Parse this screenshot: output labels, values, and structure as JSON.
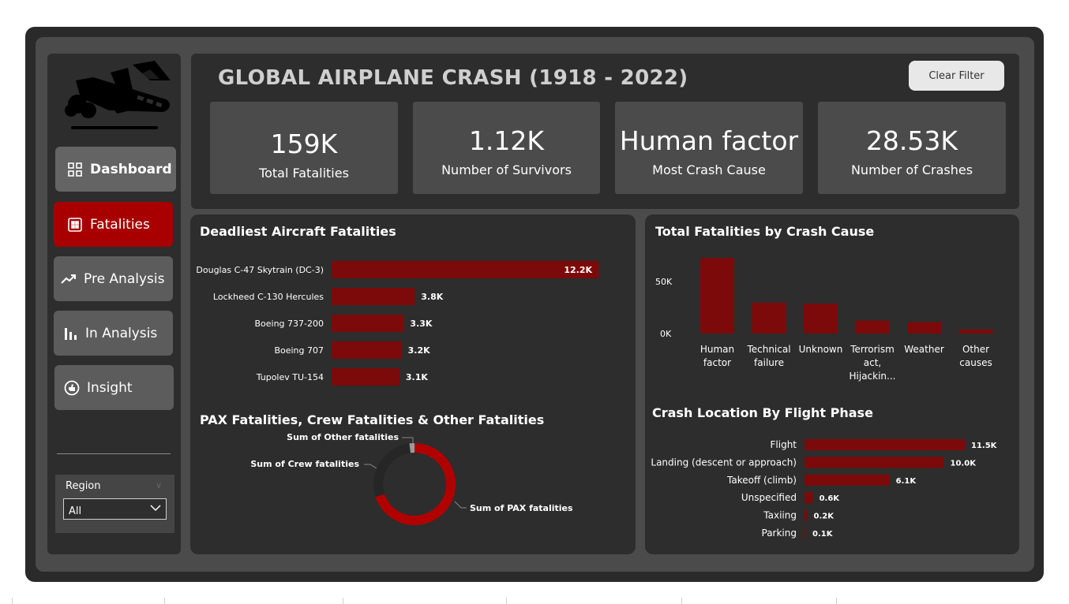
{
  "header": {
    "title": "GLOBAL AIRPLANE CRASH (1918 - 2022)",
    "clear_filter_label": "Clear Filter"
  },
  "kpis": [
    {
      "value": "159K",
      "label": "Total Fatalities"
    },
    {
      "value": "1.12K",
      "label": "Number of Survivors"
    },
    {
      "value": "Human factor",
      "label": "Most Crash Cause"
    },
    {
      "value": "28.53K",
      "label": "Number of Crashes"
    }
  ],
  "sidebar": {
    "logo_icon": "airplane-crash-icon",
    "items": [
      {
        "label": "Dashboard",
        "icon": "grid-icon"
      },
      {
        "label": "Fatalities",
        "icon": "table-icon"
      },
      {
        "label": "Pre Analysis",
        "icon": "trend-icon"
      },
      {
        "label": "In Analysis",
        "icon": "bar-chart-icon"
      },
      {
        "label": "Insight",
        "icon": "insight-icon"
      }
    ],
    "region": {
      "label": "Region",
      "selected": "All"
    }
  },
  "colors": {
    "accent": "#a80000",
    "bar": "#7d0a0a",
    "panel": "#2d2d2d",
    "frame": "#4b4b4b"
  },
  "chart_data": [
    {
      "type": "bar",
      "orientation": "horizontal",
      "title": "Deadliest Aircraft Fatalities",
      "categories": [
        "Douglas C-47 Skytrain (DC-3)",
        "Lockheed C-130 Hercules",
        "Boeing 737-200",
        "Boeing 707",
        "Tupolev TU-154"
      ],
      "values": [
        12200,
        3800,
        3300,
        3200,
        3100
      ],
      "data_labels": [
        "12.2K",
        "3.8K",
        "3.3K",
        "3.2K",
        "3.1K"
      ]
    },
    {
      "type": "bar",
      "title": "Total Fatalities by Crash Cause",
      "categories": [
        "Human factor",
        "Technical failure",
        "Unknown",
        "Terrorism act, Hijackin...",
        "Weather",
        "Other causes"
      ],
      "values": [
        76000,
        31000,
        30000,
        13000,
        11500,
        4000
      ],
      "yticks": [
        "50K",
        "0K"
      ],
      "ylim": [
        0,
        76000
      ]
    },
    {
      "type": "pie",
      "subtype": "donut",
      "title": "PAX Fatalities, Crew Fatalities & Other Fatalities",
      "labels": [
        "Sum of PAX fatalities",
        "Sum of Crew fatalities",
        "Sum of Other fatalities"
      ],
      "values": [
        70,
        28,
        2
      ],
      "colors": [
        "#b00000",
        "#262626",
        "#9a9a9a"
      ]
    },
    {
      "type": "bar",
      "orientation": "horizontal",
      "title": "Crash Location By Flight Phase",
      "categories": [
        "Flight",
        "Landing (descent or approach)",
        "Takeoff (climb)",
        "Unspecified",
        "Taxiing",
        "Parking"
      ],
      "values": [
        11500,
        10000,
        6100,
        600,
        200,
        100
      ],
      "data_labels": [
        "11.5K",
        "10.0K",
        "6.1K",
        "0.6K",
        "0.2K",
        "0.1K"
      ]
    }
  ]
}
